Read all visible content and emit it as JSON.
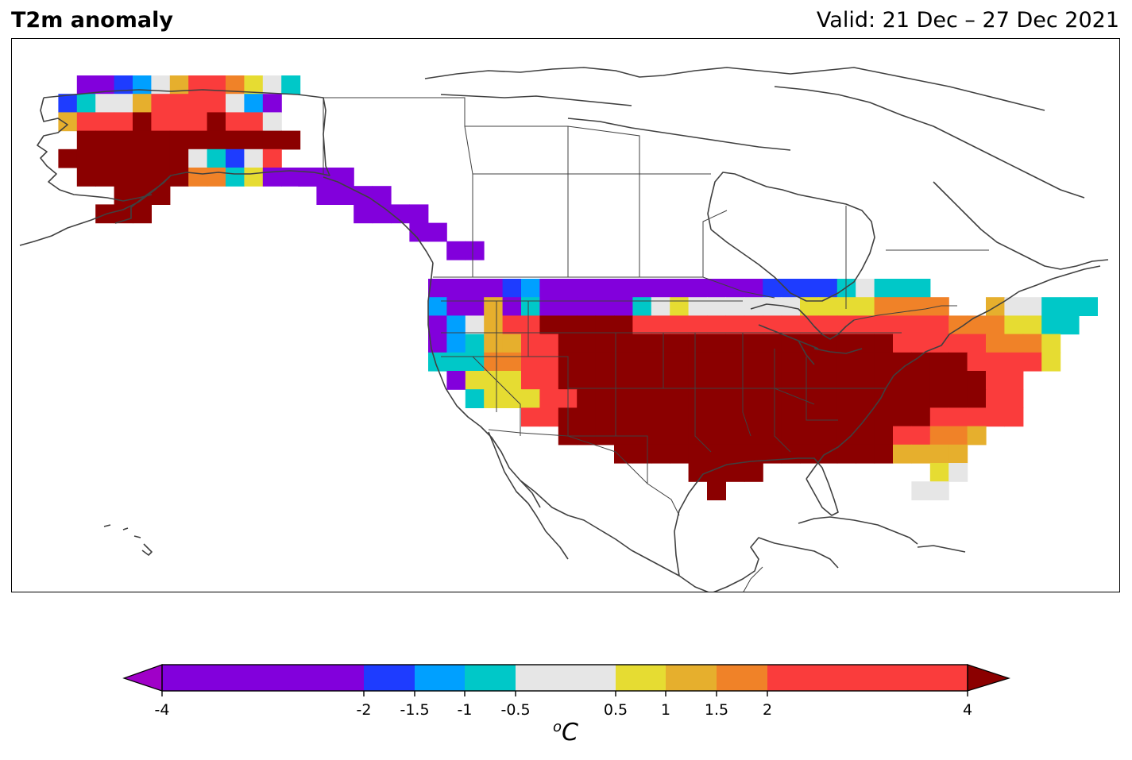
{
  "header": {
    "title": "T2m anomaly",
    "valid": "Valid: 21 Dec – 27 Dec 2021"
  },
  "colorbar": {
    "units_base": "C",
    "units_sup": "o",
    "ticks": [
      "-4",
      "-2",
      "-1.5",
      "-1",
      "-0.5",
      "0.5",
      "1",
      "1.5",
      "2",
      "4"
    ],
    "bins": [
      {
        "from": -4,
        "to": -2,
        "color": "#8200dc"
      },
      {
        "from": -2,
        "to": -1.5,
        "color": "#1e3cff"
      },
      {
        "from": -1.5,
        "to": -1,
        "color": "#00a0ff"
      },
      {
        "from": -1,
        "to": -0.5,
        "color": "#00c8c8"
      },
      {
        "from": -0.5,
        "to": 0.5,
        "color": "#e6e6e6"
      },
      {
        "from": 0.5,
        "to": 1,
        "color": "#e6dc32"
      },
      {
        "from": 1,
        "to": 1.5,
        "color": "#e6af2d"
      },
      {
        "from": 1.5,
        "to": 2,
        "color": "#f08228"
      },
      {
        "from": 2,
        "to": 4,
        "color": "#fa3c3c"
      }
    ],
    "under_color": "#a000c8",
    "over_color": "#8b0000"
  },
  "map": {
    "region": "North America",
    "coastline_color": "#404040"
  }
}
